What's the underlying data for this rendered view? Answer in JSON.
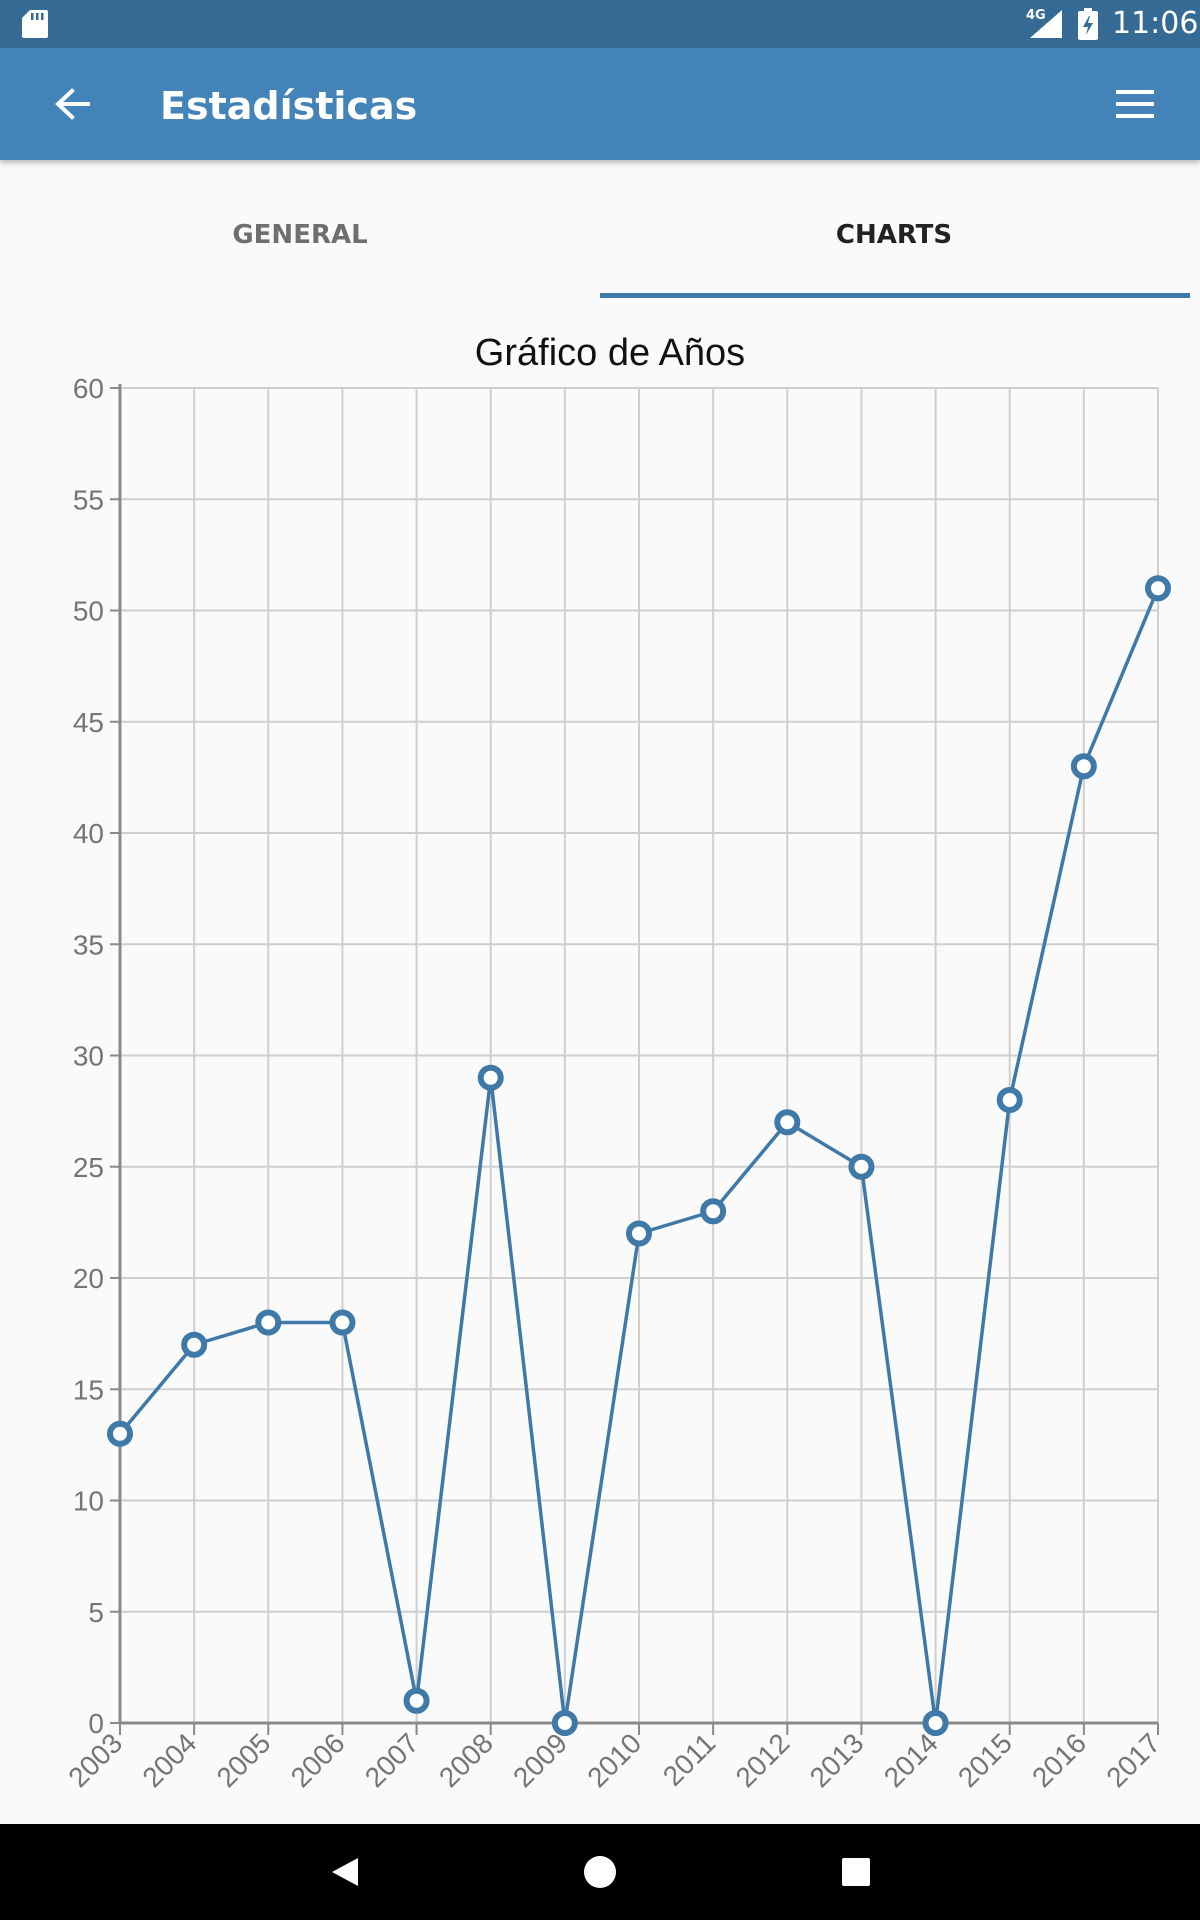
{
  "status_bar": {
    "time": "11:06",
    "network": "4G",
    "icons": [
      "sd-card-icon",
      "signal-icon",
      "battery-icon"
    ]
  },
  "app_bar": {
    "title": "Estadísticas",
    "back_icon": "arrow-back-icon",
    "menu_icon": "menu-icon"
  },
  "tabs": [
    {
      "label": "GENERAL",
      "selected": false
    },
    {
      "label": "CHARTS",
      "selected": true
    }
  ],
  "colors": {
    "status_bar": "#346a93",
    "app_bar": "#4383b7",
    "line": "#3f79a8",
    "indicator": "#3f79a8"
  },
  "chart_data": {
    "type": "line",
    "title": "Gráfico de Años",
    "xlabel": "",
    "ylabel": "",
    "ylim": [
      0,
      60
    ],
    "yticks": [
      "0",
      "5",
      "10",
      "15",
      "20",
      "25",
      "30",
      "35",
      "40",
      "45",
      "50",
      "55",
      "60"
    ],
    "categories": [
      "2003",
      "2004",
      "2005",
      "2006",
      "2007",
      "2008",
      "2009",
      "2010",
      "2011",
      "2012",
      "2013",
      "2014",
      "2015",
      "2016",
      "2017"
    ],
    "series": [
      {
        "values": [
          13,
          17,
          18,
          18,
          1,
          29,
          0,
          22,
          23,
          27,
          25,
          0,
          28,
          43,
          51
        ]
      }
    ],
    "grid": true,
    "legend": "none",
    "x_tick_rotation": "diagonal"
  },
  "nav_bar": {
    "icons": [
      "back-triangle-icon",
      "home-circle-icon",
      "recents-square-icon"
    ]
  }
}
